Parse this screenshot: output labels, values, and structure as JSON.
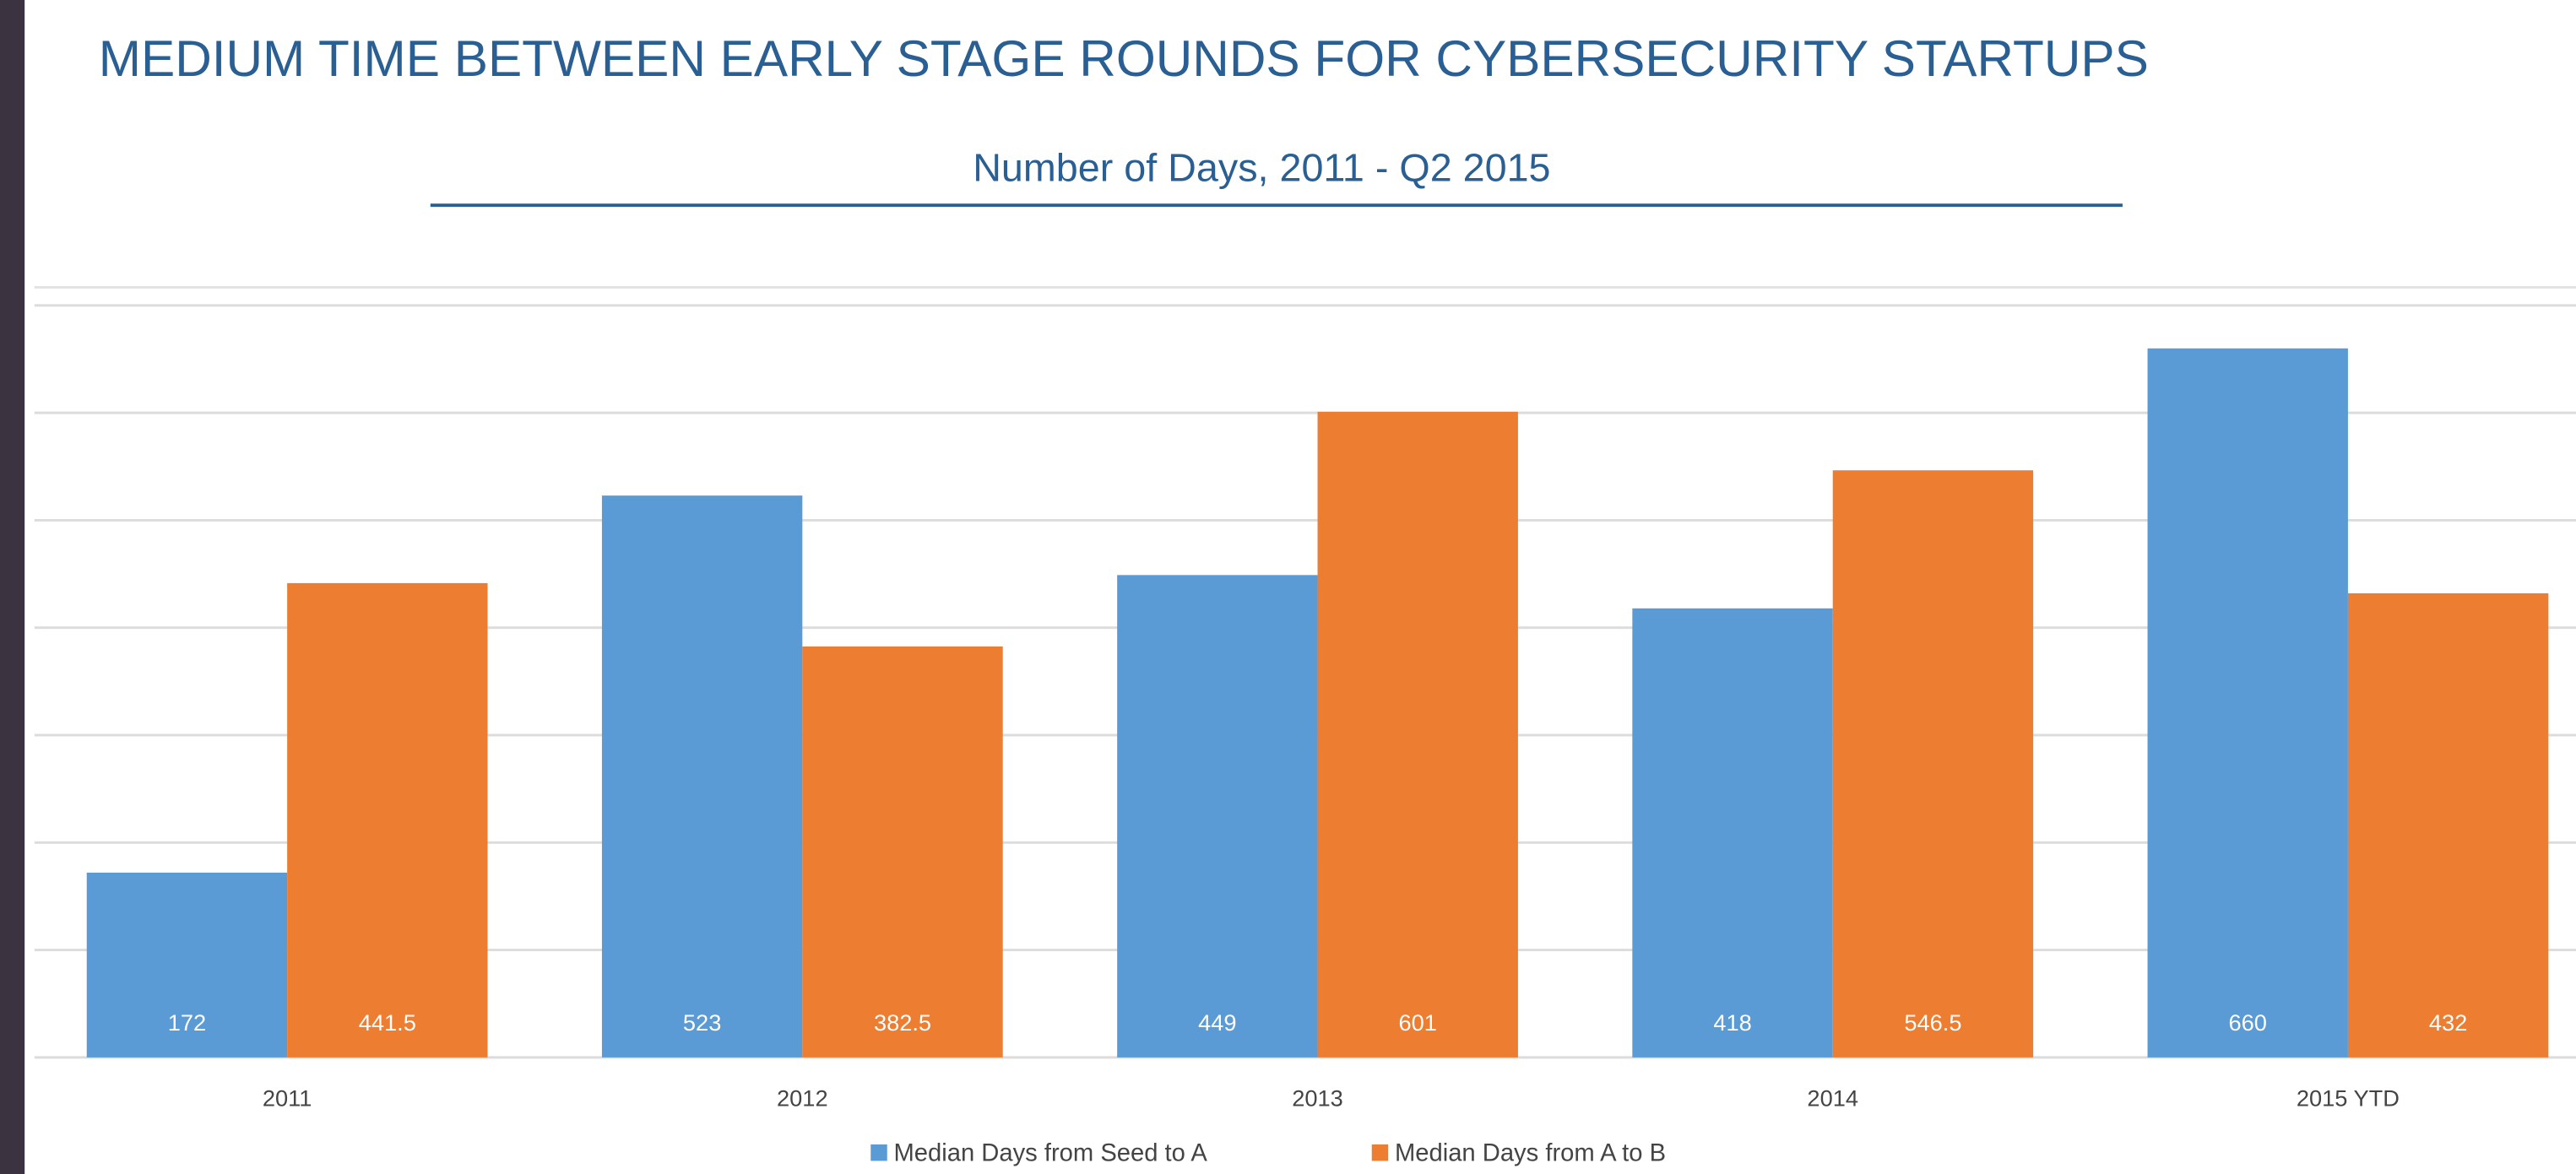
{
  "chart_data": {
    "type": "bar",
    "title": "MEDIUM TIME BETWEEN EARLY STAGE ROUNDS FOR CYBERSECURITY STARTUPS",
    "subtitle": "Number of Days, 2011 - Q2 2015",
    "categories": [
      "2011",
      "2012",
      "2013",
      "2014",
      "2015 YTD"
    ],
    "series": [
      {
        "name": "Median Days from Seed to A",
        "color": "#5b9bd5",
        "values": [
          172,
          523,
          449,
          418,
          660
        ]
      },
      {
        "name": "Median Days from A to B",
        "color": "#ed7d31",
        "values": [
          441.5,
          382.5,
          601,
          546.5,
          432
        ]
      }
    ],
    "ylim": [
      0,
      700
    ],
    "yticks": [
      0,
      100,
      200,
      300,
      400,
      500,
      600,
      700
    ],
    "grid": true,
    "legend": "bottom"
  }
}
